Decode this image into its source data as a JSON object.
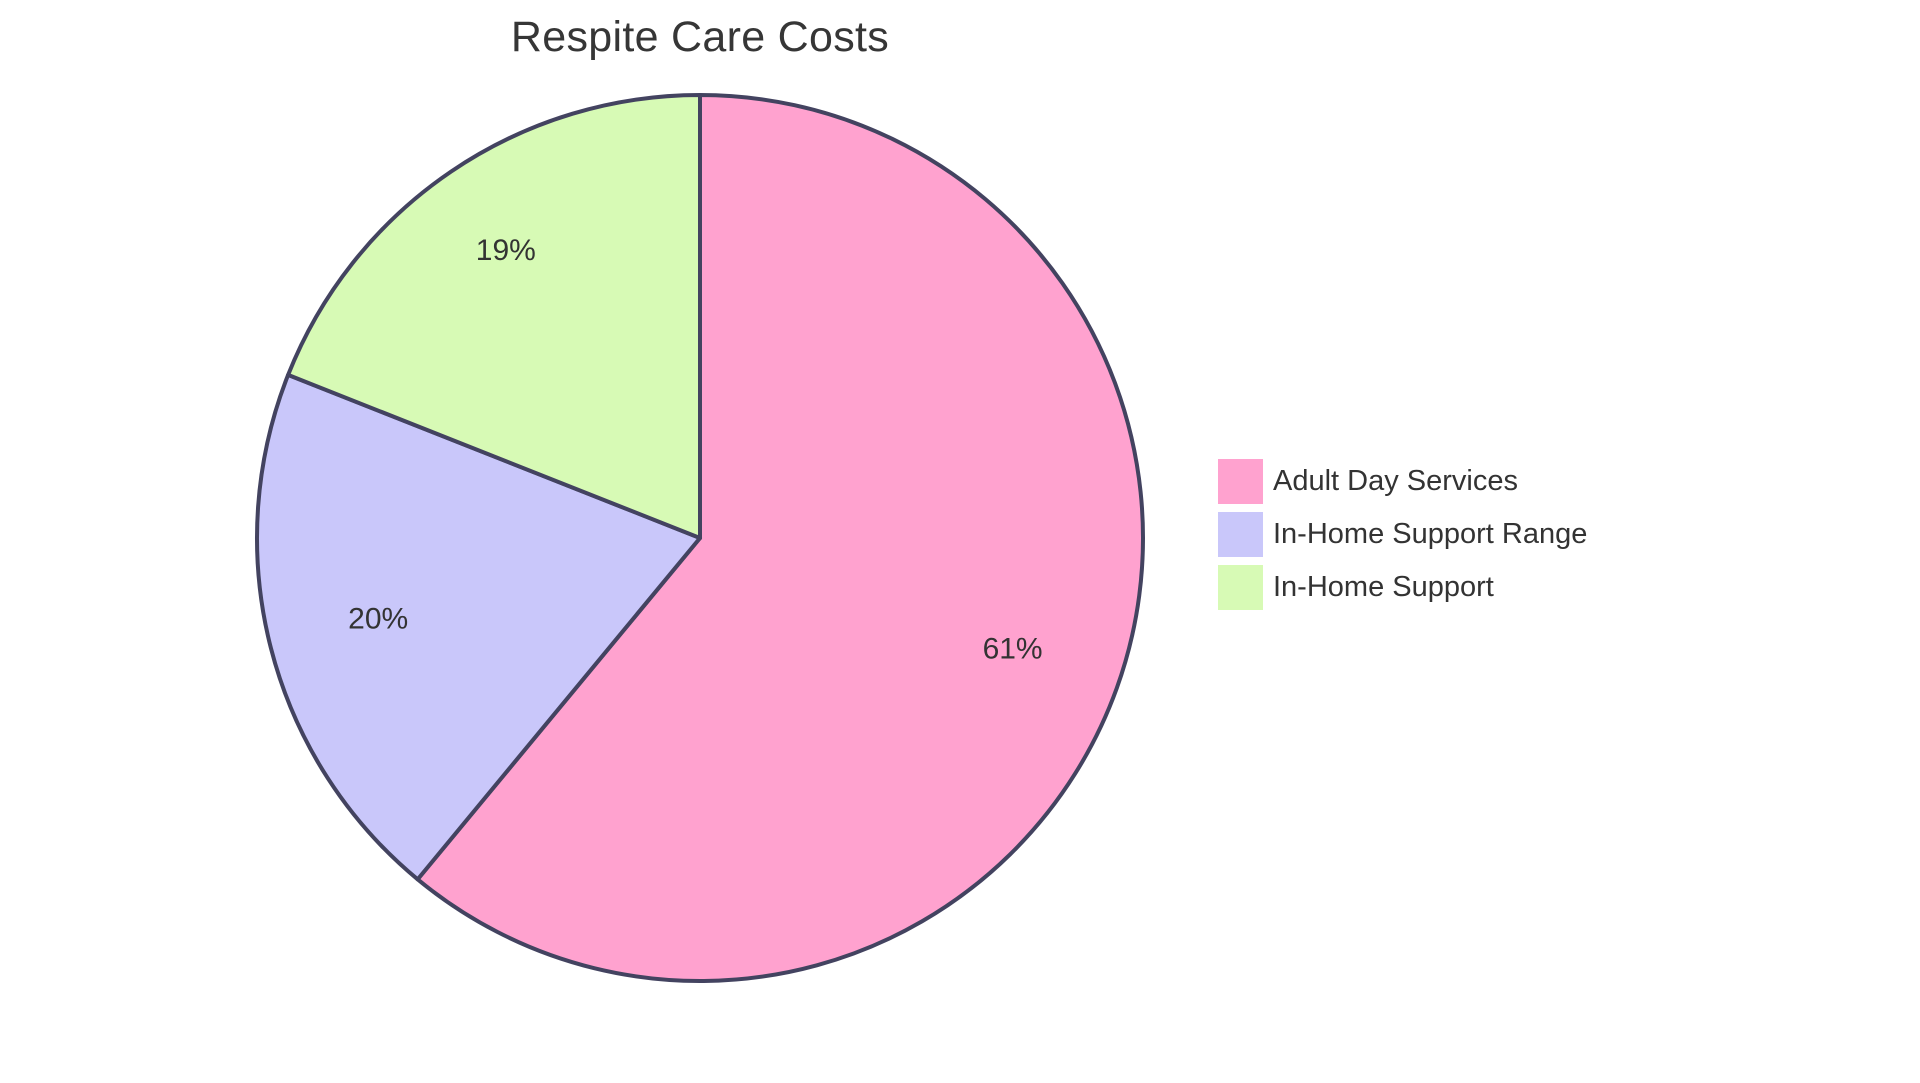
{
  "chart_data": {
    "type": "pie",
    "title": "Respite Care Costs",
    "slices": [
      {
        "label": "Adult Day Services",
        "value": 61,
        "pct_label": "61%",
        "color": "#FFA2CF"
      },
      {
        "label": "In-Home Support Range",
        "value": 20,
        "pct_label": "20%",
        "color": "#C9C7FA"
      },
      {
        "label": "In-Home Support",
        "value": 19,
        "pct_label": "19%",
        "color": "#D7FAB5"
      }
    ],
    "start_at": "top",
    "direction": "clockwise",
    "legend_position": "right",
    "background": "#FFFFFF",
    "outline_color": "#434360",
    "outline_width": 4,
    "title_color": "#363636",
    "percent_label_color": "#333333"
  }
}
